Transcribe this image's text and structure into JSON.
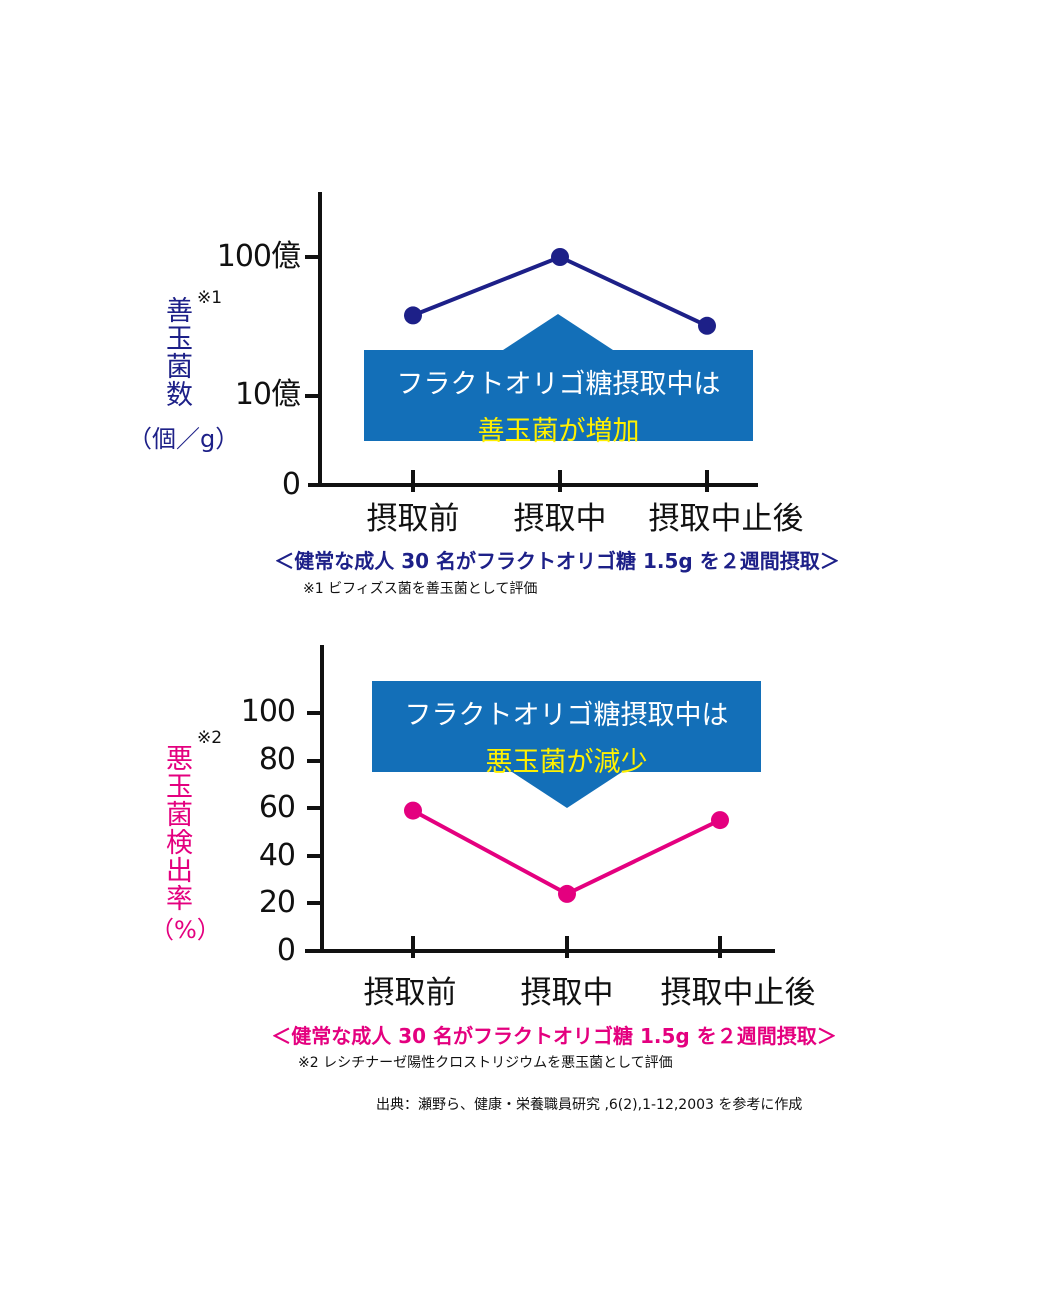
{
  "colors": {
    "navy": "#1d2088",
    "pink": "#e4007f",
    "callout": "#136fb8",
    "highlight": "#fff000",
    "axis": "#111111"
  },
  "chart_data": [
    {
      "type": "line",
      "scale": "log",
      "ylabel": "善玉菌数",
      "ylabel_note": "※1",
      "yunit": "（個／g）",
      "yticks": [
        {
          "label": "0"
        },
        {
          "label": "10億",
          "value": 1000000000
        },
        {
          "label": "100億",
          "value": 10000000000
        }
      ],
      "categories": [
        "摂取前",
        "摂取中",
        "摂取中止後"
      ],
      "series": [
        {
          "name": "善玉菌数",
          "values": [
            3800000000,
            10000000000,
            3200000000
          ],
          "color": "#1d2088"
        }
      ],
      "callout": {
        "line1": "フラクトオリゴ糖摂取中は",
        "line2": "善玉菌が増加"
      },
      "caption": "＜健常な成人 30 名がフラクトオリゴ糖 1.5g を２週間摂取＞",
      "footnote": "※1 ビフィズス菌を善玉菌として評価"
    },
    {
      "type": "line",
      "scale": "linear",
      "ylabel": "悪玉菌検出率",
      "ylabel_note": "※2",
      "yunit": "（%）",
      "ylim": [
        0,
        100
      ],
      "yticks": [
        {
          "label": "0",
          "value": 0
        },
        {
          "label": "20",
          "value": 20
        },
        {
          "label": "40",
          "value": 40
        },
        {
          "label": "60",
          "value": 60
        },
        {
          "label": "80",
          "value": 80
        },
        {
          "label": "100",
          "value": 100
        }
      ],
      "categories": [
        "摂取前",
        "摂取中",
        "摂取中止後"
      ],
      "series": [
        {
          "name": "悪玉菌検出率",
          "values": [
            59,
            24,
            55
          ],
          "color": "#e4007f"
        }
      ],
      "callout": {
        "line1": "フラクトオリゴ糖摂取中は",
        "line2": "悪玉菌が減少"
      },
      "caption": "＜健常な成人 30 名がフラクトオリゴ糖 1.5g を２週間摂取＞",
      "footnote": "※2 レシチナーゼ陽性クロストリジウムを悪玉菌として評価"
    }
  ],
  "source": "出典：瀬野ら、健康・栄養職員研究 ,6(2),1-12,2003 を参考に作成"
}
